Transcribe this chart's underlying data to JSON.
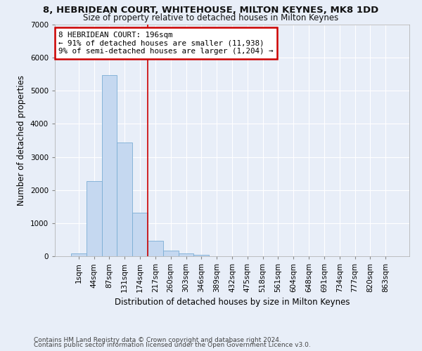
{
  "title": "8, HEBRIDEAN COURT, WHITEHOUSE, MILTON KEYNES, MK8 1DD",
  "subtitle": "Size of property relative to detached houses in Milton Keynes",
  "xlabel": "Distribution of detached houses by size in Milton Keynes",
  "ylabel": "Number of detached properties",
  "categories": [
    "1sqm",
    "44sqm",
    "87sqm",
    "131sqm",
    "174sqm",
    "217sqm",
    "260sqm",
    "303sqm",
    "346sqm",
    "389sqm",
    "432sqm",
    "475sqm",
    "518sqm",
    "561sqm",
    "604sqm",
    "648sqm",
    "691sqm",
    "734sqm",
    "777sqm",
    "820sqm",
    "863sqm"
  ],
  "values": [
    80,
    2280,
    5480,
    3440,
    1310,
    470,
    160,
    85,
    50,
    0,
    0,
    0,
    0,
    0,
    0,
    0,
    0,
    0,
    0,
    0,
    0
  ],
  "bar_color": "#c5d8f0",
  "bar_edge_color": "#7aadd4",
  "vline_x": 4.5,
  "annotation_line1": "8 HEBRIDEAN COURT: 196sqm",
  "annotation_line2": "← 91% of detached houses are smaller (11,938)",
  "annotation_line3": "9% of semi-detached houses are larger (1,204) →",
  "box_facecolor": "#ffffff",
  "box_edgecolor": "#cc0000",
  "vline_color": "#cc0000",
  "ylim": [
    0,
    7000
  ],
  "yticks": [
    0,
    1000,
    2000,
    3000,
    4000,
    5000,
    6000,
    7000
  ],
  "footer1": "Contains HM Land Registry data © Crown copyright and database right 2024.",
  "footer2": "Contains public sector information licensed under the Open Government Licence v3.0.",
  "background_color": "#e8eef8",
  "grid_color": "#ffffff"
}
